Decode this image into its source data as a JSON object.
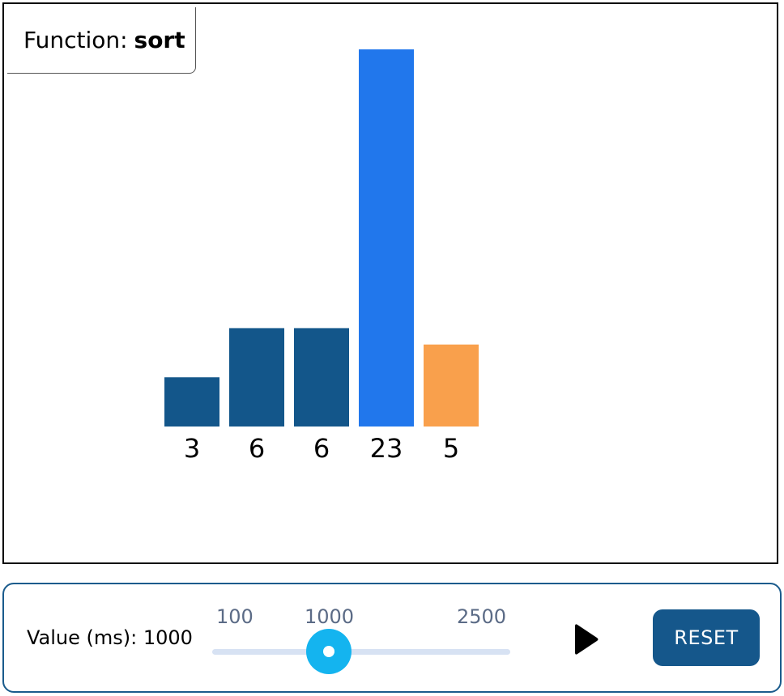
{
  "function_panel": {
    "label": "Function:",
    "name": "sort"
  },
  "chart_data": {
    "type": "bar",
    "categories": [
      "3",
      "6",
      "6",
      "23",
      "5"
    ],
    "values": [
      3,
      6,
      6,
      23,
      5
    ],
    "colors": [
      "#13568a",
      "#13568a",
      "#13568a",
      "#2177ec",
      "#f9a04c"
    ]
  },
  "controls": {
    "value_label": "Value (ms): 1000",
    "slider": {
      "min_label": "100",
      "current_label": "1000",
      "max_label": "2500",
      "min": 100,
      "max": 2500,
      "value": 1000
    },
    "play_icon": "play-icon",
    "reset_label": "RESET"
  }
}
